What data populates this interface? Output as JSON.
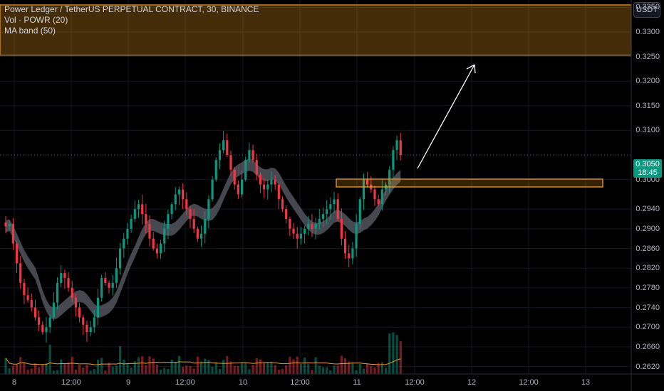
{
  "legend": {
    "symbol_line": "Power Ledger / TetherUS PERPETUAL CONTRACT, 30, BINANCE",
    "vol_line": "Vol · POWR (20)",
    "band_line": "MA band (50)"
  },
  "toolbar": {
    "currency": "USDT"
  },
  "price_tag": {
    "price": "0.3050",
    "countdown": "18:45"
  },
  "colors": {
    "up": "#089981",
    "down": "#f23645",
    "zone": "#f29d18",
    "band": "#5d606b",
    "volma": "#f29d18"
  },
  "chart_data": {
    "type": "candlestick",
    "symbol": "POWRUSDT.P",
    "interval": "30",
    "ylim": [
      0.2605,
      0.3365
    ],
    "y_ticks": [
      "0.3350",
      "0.3300",
      "0.3250",
      "0.3200",
      "0.3150",
      "0.3100",
      "0.3000",
      "0.2940",
      "0.2900",
      "0.2860",
      "0.2820",
      "0.2780",
      "0.2740",
      "0.2700",
      "0.2660",
      "0.2620"
    ],
    "x_ticks": [
      "8",
      "12:00",
      "9",
      "12:00",
      "10",
      "12:00",
      "11",
      "12:00",
      "12",
      "12:00",
      "13"
    ],
    "resistance_zone": [
      0.3253,
      0.3355
    ],
    "support_zone": [
      0.2985,
      0.3001
    ],
    "last_price": 0.305,
    "closes": [
      0.2905,
      0.291,
      0.287,
      0.283,
      0.279,
      0.2765,
      0.2755,
      0.274,
      0.272,
      0.2705,
      0.269,
      0.27,
      0.272,
      0.275,
      0.279,
      0.281,
      0.28,
      0.278,
      0.276,
      0.274,
      0.272,
      0.2705,
      0.269,
      0.27,
      0.272,
      0.276,
      0.28,
      0.279,
      0.278,
      0.279,
      0.282,
      0.286,
      0.288,
      0.29,
      0.292,
      0.294,
      0.295,
      0.293,
      0.291,
      0.288,
      0.286,
      0.285,
      0.287,
      0.29,
      0.293,
      0.295,
      0.297,
      0.298,
      0.296,
      0.294,
      0.292,
      0.29,
      0.288,
      0.289,
      0.292,
      0.296,
      0.3,
      0.304,
      0.306,
      0.308,
      0.305,
      0.302,
      0.299,
      0.297,
      0.3,
      0.304,
      0.306,
      0.304,
      0.301,
      0.299,
      0.298,
      0.299,
      0.3,
      0.299,
      0.296,
      0.294,
      0.292,
      0.29,
      0.289,
      0.288,
      0.289,
      0.29,
      0.291,
      0.29,
      0.291,
      0.292,
      0.293,
      0.294,
      0.295,
      0.296,
      0.292,
      0.288,
      0.285,
      0.284,
      0.286,
      0.291,
      0.296,
      0.3,
      0.299,
      0.298,
      0.296,
      0.295,
      0.298,
      0.299,
      0.302,
      0.306,
      0.308,
      0.305
    ],
    "vol_ma_length": 20,
    "ma_band_length": 50
  }
}
